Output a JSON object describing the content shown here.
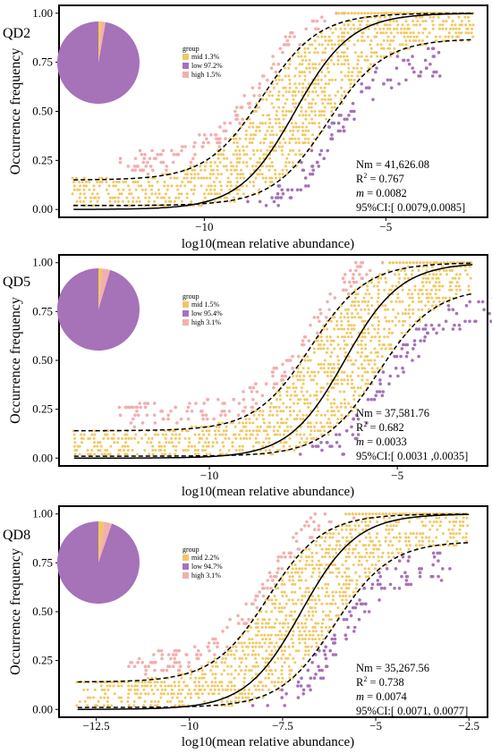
{
  "colors": {
    "mid": "#F2C761",
    "low": "#A672B8",
    "high": "#F2AFAF",
    "frame": "#000000"
  },
  "chart_data": [
    {
      "type": "scatter",
      "panel_label": "QD2",
      "ylabel": "Occurrence frequency",
      "xlabel": "log10(mean relative abundance)",
      "xlim": [
        -14.0,
        -2.2
      ],
      "ylim": [
        -0.04,
        1.04
      ],
      "xticks": [
        -10,
        -5
      ],
      "xtick_labels": [
        "−10",
        "−5"
      ],
      "yticks": [
        0.0,
        0.25,
        0.5,
        0.75,
        1.0
      ],
      "ytick_labels": [
        "0.00",
        "0.25",
        "0.50",
        "0.75",
        "1.00"
      ],
      "legend": {
        "title": "group",
        "entries": [
          {
            "name": "mid 1.3%",
            "key": "mid"
          },
          {
            "name": "low 97.2%",
            "key": "low"
          },
          {
            "name": "high 1.5%",
            "key": "high"
          }
        ]
      },
      "pie": [
        {
          "group": "mid",
          "percent": 1.3
        },
        {
          "group": "low",
          "percent": 97.2
        },
        {
          "group": "high",
          "percent": 1.5
        }
      ],
      "fit": {
        "x_start": -13.6,
        "x_end": -2.6,
        "mid": -7.5,
        "slope": 1.3,
        "lower_start": 0.02,
        "upper_start": 0.15,
        "upper_plateau": 1.0,
        "lower_plateau": 0.87
      },
      "yellow_range": [
        -13.6,
        -2.6
      ],
      "stats": {
        "nm": "Nm = 41,626.08",
        "r2_prefix": "R",
        "r2_value": " = 0.767",
        "m_label": "m",
        "m_value": " = 0.0082",
        "ci": "95%CI:[ 0.0079,0.0085]"
      }
    },
    {
      "type": "scatter",
      "panel_label": "QD5",
      "ylabel": "Occurrence frequency",
      "xlabel": "log10(mean relative abundance)",
      "xlim": [
        -14.0,
        -2.6
      ],
      "ylim": [
        -0.04,
        1.04
      ],
      "xticks": [
        -10,
        -5
      ],
      "xtick_labels": [
        "−10",
        "−5"
      ],
      "yticks": [
        0.0,
        0.25,
        0.5,
        0.75,
        1.0
      ],
      "ytick_labels": [
        "0.00",
        "0.25",
        "0.50",
        "0.75",
        "1.00"
      ],
      "legend": {
        "title": "group",
        "entries": [
          {
            "name": "mid 1.5%",
            "key": "mid"
          },
          {
            "name": "low 95.4%",
            "key": "low"
          },
          {
            "name": "high 3.1%",
            "key": "high"
          }
        ]
      },
      "pie": [
        {
          "group": "mid",
          "percent": 1.5
        },
        {
          "group": "low",
          "percent": 95.4
        },
        {
          "group": "high",
          "percent": 3.1
        }
      ],
      "fit": {
        "x_start": -13.6,
        "x_end": -3.0,
        "mid": -6.4,
        "slope": 1.35,
        "lower_start": 0.01,
        "upper_start": 0.14,
        "upper_plateau": 1.0,
        "lower_plateau": 0.87
      },
      "yellow_range": [
        -13.6,
        -3.0
      ],
      "stats": {
        "nm": "Nm = 37,581.76",
        "r2_prefix": "R",
        "r2_value": " = 0.682",
        "m_label": "m",
        "m_value": " = 0.0033",
        "ci": "95%CI:[ 0.0031 ,0.0035]"
      }
    },
    {
      "type": "scatter",
      "panel_label": "QD8",
      "ylabel": "Occurrence frequency",
      "xlabel": "log10(mean relative abundance)",
      "xlim": [
        -13.5,
        -2.0
      ],
      "ylim": [
        -0.04,
        1.04
      ],
      "xticks": [
        -12.5,
        -10,
        -7.5,
        -5,
        -2.5
      ],
      "xtick_labels": [
        "−12.5",
        "−10",
        "−7.5",
        "−5",
        "−2.5"
      ],
      "yticks": [
        0.0,
        0.25,
        0.5,
        0.75,
        1.0
      ],
      "ytick_labels": [
        "0.00",
        "0.25",
        "0.50",
        "0.75",
        "1.00"
      ],
      "legend": {
        "title": "group",
        "entries": [
          {
            "name": "mid 2.2%",
            "key": "mid"
          },
          {
            "name": "low 94.7%",
            "key": "low"
          },
          {
            "name": "high 3.1%",
            "key": "high"
          }
        ]
      },
      "pie": [
        {
          "group": "mid",
          "percent": 2.2
        },
        {
          "group": "low",
          "percent": 94.7
        },
        {
          "group": "high",
          "percent": 3.1
        }
      ],
      "fit": {
        "x_start": -13.0,
        "x_end": -2.5,
        "mid": -7.0,
        "slope": 1.35,
        "lower_start": 0.01,
        "upper_start": 0.14,
        "upper_plateau": 1.0,
        "lower_plateau": 0.86
      },
      "yellow_range": [
        -13.0,
        -2.5
      ],
      "stats": {
        "nm": "Nm = 35,267.56",
        "r2_prefix": "R",
        "r2_value": " = 0.738",
        "m_label": "m",
        "m_value": " = 0.0074",
        "ci": "95%CI:[ 0.0071, 0.0077]"
      }
    }
  ]
}
